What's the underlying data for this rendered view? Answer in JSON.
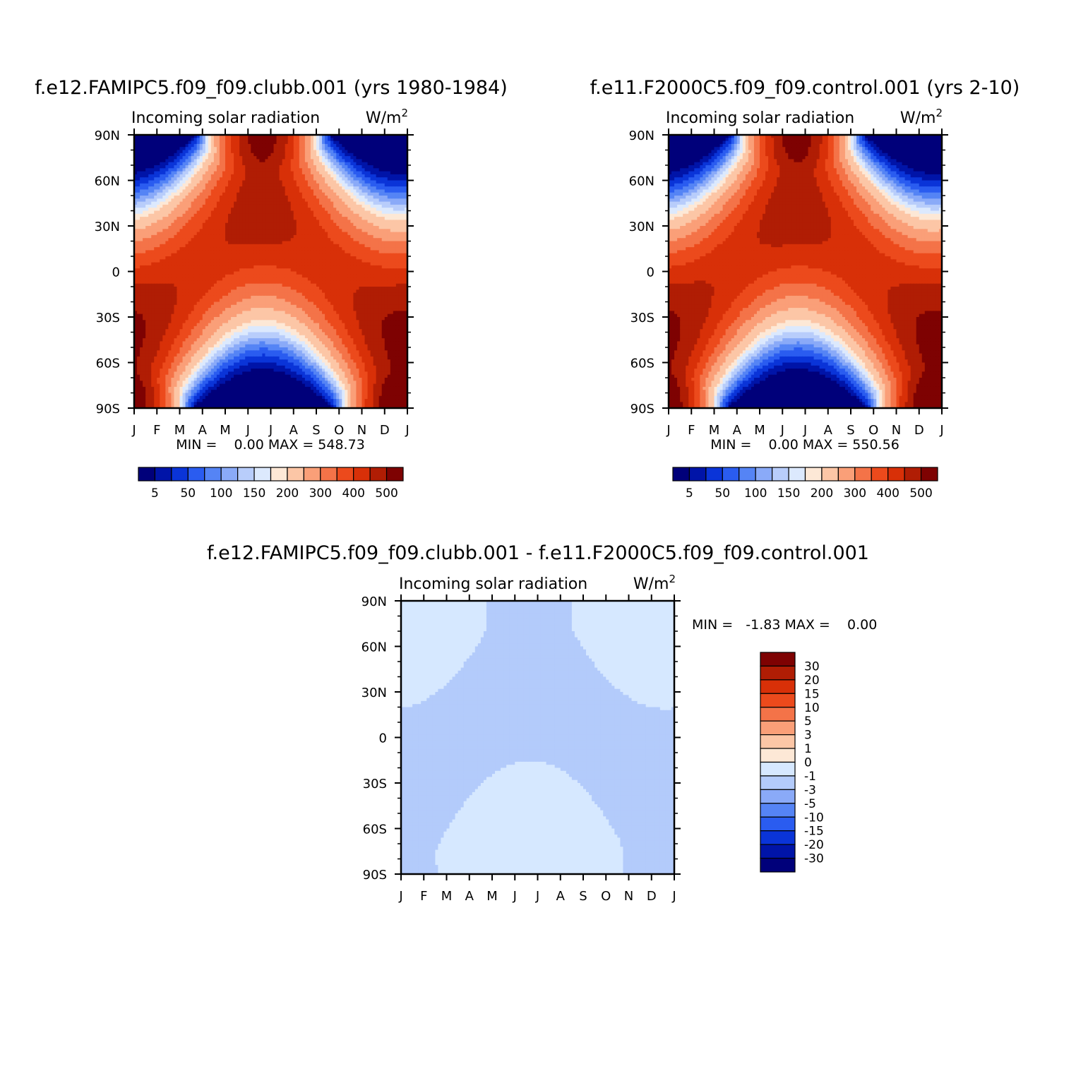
{
  "panels": [
    {
      "case_title": "f.e12.FAMIPC5.f09_f09.clubb.001 (yrs 1980-1984)",
      "variable_label": "Incoming solar radiation",
      "units_base": "W/m",
      "units_sup": "2",
      "stats": "MIN =    0.00 MAX = 548.73"
    },
    {
      "case_title": "f.e11.F2000C5.f09_f09.control.001 (yrs 2-10)",
      "variable_label": "Incoming solar radiation",
      "units_base": "W/m",
      "units_sup": "2",
      "stats": "MIN =    0.00 MAX = 550.56"
    },
    {
      "case_title": "f.e12.FAMIPC5.f09_f09.clubb.001 - f.e11.F2000C5.f09_f09.control.001",
      "variable_label": "Incoming solar radiation",
      "units_base": "W/m",
      "units_sup": "2",
      "stats": "MIN =   -1.83 MAX =    0.00"
    }
  ],
  "chart_data": [
    {
      "type": "heatmap",
      "subtype": "filled contour (month vs latitude)",
      "title": "f.e12.FAMIPC5.f09_f09.clubb.001 (yrs 1980-1984)",
      "subtitle": "Incoming solar radiation",
      "units": "W/m2",
      "x": [
        "J",
        "F",
        "M",
        "A",
        "M",
        "J",
        "J",
        "A",
        "S",
        "O",
        "N",
        "D",
        "J"
      ],
      "y": [
        "90N",
        "60N",
        "30N",
        "0",
        "30S",
        "60S",
        "90S"
      ],
      "ylim": [
        -90,
        90
      ],
      "colorbar_ticks": [
        "5",
        "50",
        "100",
        "150",
        "200",
        "300",
        "400",
        "500"
      ],
      "colorbar_levels": [
        5,
        25,
        50,
        75,
        100,
        125,
        150,
        175,
        200,
        250,
        300,
        350,
        400,
        450,
        500
      ],
      "colors": [
        "#00007a",
        "#0014a8",
        "#0a34d8",
        "#2a5cf0",
        "#5584f5",
        "#8aaaf8",
        "#b8cdfb",
        "#dce9fd",
        "#fde8d6",
        "#fcc6a6",
        "#fa9f78",
        "#f47348",
        "#ec4a1c",
        "#d83008",
        "#b01d04",
        "#7e0202"
      ],
      "min": 0.0,
      "max": 548.73
    },
    {
      "type": "heatmap",
      "subtype": "filled contour (month vs latitude)",
      "title": "f.e11.F2000C5.f09_f09.control.001 (yrs 2-10)",
      "subtitle": "Incoming solar radiation",
      "units": "W/m2",
      "x": [
        "J",
        "F",
        "M",
        "A",
        "M",
        "J",
        "J",
        "A",
        "S",
        "O",
        "N",
        "D",
        "J"
      ],
      "y": [
        "90N",
        "60N",
        "30N",
        "0",
        "30S",
        "60S",
        "90S"
      ],
      "ylim": [
        -90,
        90
      ],
      "colorbar_ticks": [
        "5",
        "50",
        "100",
        "150",
        "200",
        "300",
        "400",
        "500"
      ],
      "colorbar_levels": [
        5,
        25,
        50,
        75,
        100,
        125,
        150,
        175,
        200,
        250,
        300,
        350,
        400,
        450,
        500
      ],
      "colors": [
        "#00007a",
        "#0014a8",
        "#0a34d8",
        "#2a5cf0",
        "#5584f5",
        "#8aaaf8",
        "#b8cdfb",
        "#dce9fd",
        "#fde8d6",
        "#fcc6a6",
        "#fa9f78",
        "#f47348",
        "#ec4a1c",
        "#d83008",
        "#b01d04",
        "#7e0202"
      ],
      "min": 0.0,
      "max": 550.56
    },
    {
      "type": "heatmap",
      "subtype": "filled contour difference (month vs latitude)",
      "title": "f.e12.FAMIPC5.f09_f09.clubb.001 - f.e11.F2000C5.f09_f09.control.001",
      "subtitle": "Incoming solar radiation",
      "units": "W/m2",
      "x": [
        "J",
        "F",
        "M",
        "A",
        "M",
        "J",
        "J",
        "A",
        "S",
        "O",
        "N",
        "D",
        "J"
      ],
      "y": [
        "90N",
        "60N",
        "30N",
        "0",
        "30S",
        "60S",
        "90S"
      ],
      "ylim": [
        -90,
        90
      ],
      "colorbar_ticks": [
        "30",
        "20",
        "15",
        "10",
        "5",
        "3",
        "1",
        "0",
        "-1",
        "-3",
        "-5",
        "-10",
        "-15",
        "-20",
        "-30"
      ],
      "colorbar_colors_top_to_bottom": [
        "#7e0202",
        "#b01d04",
        "#d83008",
        "#ec4a1c",
        "#f47348",
        "#fa9f78",
        "#fcc6a6",
        "#fde8d6",
        "#d6e8ff",
        "#b3cbfb",
        "#8aaaf8",
        "#5584f5",
        "#2a5cf0",
        "#0a34d8",
        "#0014a8",
        "#00007a"
      ],
      "regions": [
        {
          "value_range": [
            -1,
            0
          ],
          "color": "#d6e8ff",
          "where": "polar caps in local winter/spring (NH Jan-Apr & Sep-Dec, SH Mar-Oct)"
        },
        {
          "value_range": [
            -3,
            -1
          ],
          "color": "#b3cbfb",
          "where": "remainder of domain"
        }
      ],
      "min": -1.83,
      "max": 0.0
    }
  ]
}
